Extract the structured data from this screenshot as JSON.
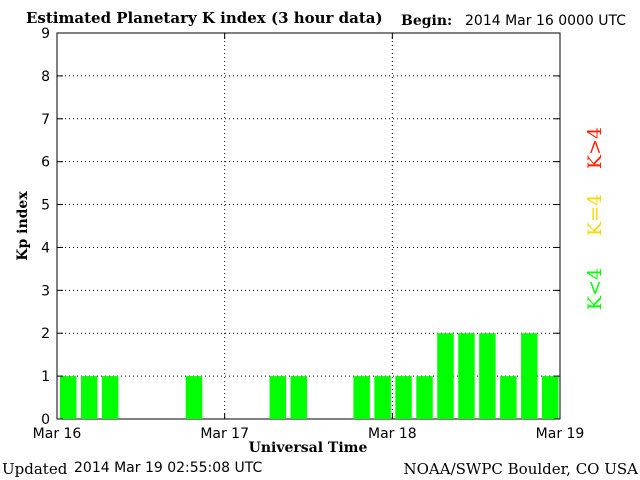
{
  "header": {
    "title": "Estimated Planetary K index (3 hour data)",
    "begin_label": "Begin:",
    "begin_value": "2014 Mar 16 0000 UTC"
  },
  "footer": {
    "updated_label": "Updated",
    "updated_value": "2014 Mar 19 02:55:08 UTC",
    "credit": "NOAA/SWPC Boulder, CO USA"
  },
  "colors": {
    "bar_low": "#00ff00",
    "legend_low": "#00ff00",
    "legend_mid": "#ffd700",
    "legend_high": "#ff2200",
    "grid": "#000000"
  },
  "chart_data": {
    "type": "bar",
    "title": "Estimated Planetary K index (3 hour data)",
    "xlabel": "Universal Time",
    "ylabel": "Kp index",
    "ylim": [
      0,
      9
    ],
    "yticks": [
      "0",
      "1",
      "2",
      "3",
      "4",
      "5",
      "6",
      "7",
      "8",
      "9"
    ],
    "xticks": [
      "Mar 16",
      "Mar 17",
      "Mar 18",
      "Mar 19"
    ],
    "interval_hours": 3,
    "values": [
      1,
      1,
      1,
      0,
      0,
      0,
      1,
      0,
      0,
      0,
      1,
      1,
      0,
      0,
      1,
      1,
      1,
      1,
      2,
      2,
      2,
      1,
      2,
      1
    ],
    "grid": true,
    "legend": [
      {
        "label": "K<4",
        "color": "#00ff00"
      },
      {
        "label": "K=4",
        "color": "#ffd700"
      },
      {
        "label": "K>4",
        "color": "#ff2200"
      }
    ],
    "legend_placement": "right"
  }
}
